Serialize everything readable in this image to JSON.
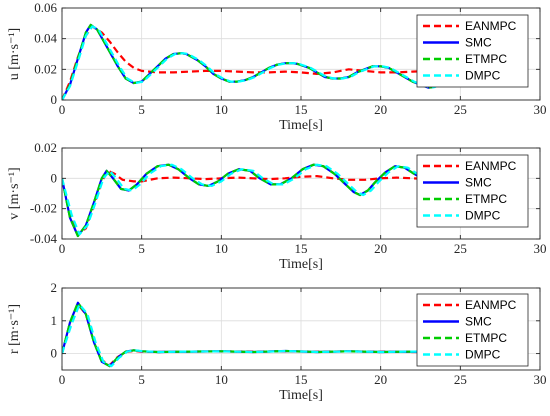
{
  "colors": {
    "EANMPC": "#ff0000",
    "SMC": "#0000ff",
    "ETMPC": "#00cc00",
    "DMPC": "#00ffff",
    "grid": "#dcdcdc",
    "axis": "#262626"
  },
  "chart_data": [
    {
      "type": "line",
      "ylabel": "u [m·s⁻¹]",
      "xlabel": "Time[s]",
      "xlim": [
        0,
        30
      ],
      "ylim": [
        0,
        0.06
      ],
      "xticks": [
        0,
        5,
        10,
        15,
        20,
        25,
        30
      ],
      "yticks": [
        0,
        0.02,
        0.04,
        0.06
      ],
      "ytick_labels": [
        "0",
        "0.02",
        "0.04",
        "0.06"
      ],
      "grid": true,
      "legend": "top-right",
      "series": [
        {
          "name": "EANMPC",
          "style": "dashed",
          "color": "#ff0000",
          "x": [
            0,
            0.5,
            1,
            1.5,
            1.9,
            2.5,
            3,
            3.5,
            4,
            4.5,
            5,
            6,
            7,
            8,
            9,
            10,
            11,
            12,
            13,
            14,
            15,
            16,
            17,
            18,
            19,
            20,
            21,
            22,
            23,
            24
          ],
          "y": [
            0,
            0.012,
            0.028,
            0.042,
            0.048,
            0.044,
            0.038,
            0.031,
            0.025,
            0.021,
            0.019,
            0.018,
            0.018,
            0.0185,
            0.019,
            0.019,
            0.0185,
            0.018,
            0.018,
            0.0185,
            0.018,
            0.017,
            0.018,
            0.02,
            0.019,
            0.018,
            0.018,
            0.0185,
            0.019,
            0.018
          ]
        },
        {
          "name": "SMC",
          "style": "solid",
          "color": "#0000ff",
          "x": [
            0,
            0.5,
            1,
            1.5,
            1.8,
            2.2,
            2.8,
            3.5,
            4,
            4.5,
            5,
            5.5,
            6,
            6.5,
            7,
            7.5,
            7.8,
            8.5,
            9,
            9.5,
            10,
            10.5,
            11,
            11.5,
            12,
            12.5,
            13,
            13.5,
            14,
            14.5,
            14.8,
            15.5,
            16,
            16.5,
            17,
            17.5,
            18,
            18.5,
            19,
            19.5,
            20,
            20.5,
            21,
            21.5,
            22,
            22.5,
            23,
            23.3,
            24
          ],
          "y": [
            0,
            0.01,
            0.027,
            0.044,
            0.049,
            0.046,
            0.035,
            0.022,
            0.014,
            0.011,
            0.012,
            0.017,
            0.022,
            0.027,
            0.03,
            0.0305,
            0.03,
            0.026,
            0.022,
            0.017,
            0.014,
            0.012,
            0.012,
            0.013,
            0.015,
            0.018,
            0.021,
            0.023,
            0.024,
            0.024,
            0.0235,
            0.021,
            0.018,
            0.015,
            0.014,
            0.014,
            0.015,
            0.018,
            0.02,
            0.022,
            0.022,
            0.021,
            0.018,
            0.015,
            0.012,
            0.01,
            0.008,
            0.0085,
            0.014
          ]
        },
        {
          "name": "ETMPC",
          "style": "dashed",
          "color": "#00cc00",
          "x": [
            0,
            0.5,
            1,
            1.5,
            1.8,
            2.2,
            2.8,
            3.5,
            4,
            4.5,
            5,
            5.5,
            6,
            6.5,
            7,
            7.5,
            7.8,
            8.5,
            9,
            9.5,
            10,
            10.5,
            11,
            11.5,
            12,
            12.5,
            13,
            13.5,
            14,
            14.5,
            14.8,
            15.5,
            16,
            16.5,
            17,
            17.5,
            18,
            18.5,
            19,
            19.5,
            20,
            20.5,
            21,
            21.5,
            22,
            22.5,
            23,
            23.3,
            24
          ],
          "y": [
            0,
            0.01,
            0.027,
            0.044,
            0.049,
            0.046,
            0.035,
            0.022,
            0.014,
            0.011,
            0.012,
            0.017,
            0.022,
            0.027,
            0.03,
            0.0305,
            0.03,
            0.026,
            0.022,
            0.017,
            0.014,
            0.012,
            0.012,
            0.013,
            0.015,
            0.018,
            0.021,
            0.023,
            0.024,
            0.024,
            0.0235,
            0.021,
            0.018,
            0.015,
            0.014,
            0.014,
            0.015,
            0.018,
            0.02,
            0.022,
            0.022,
            0.021,
            0.018,
            0.015,
            0.012,
            0.01,
            0.008,
            0.0085,
            0.014
          ]
        },
        {
          "name": "DMPC",
          "style": "dashed",
          "color": "#00ffff",
          "x": [
            0,
            0.5,
            1,
            1.5,
            1.9,
            2.3,
            2.9,
            3.6,
            4.1,
            4.6,
            5.1,
            5.6,
            6.1,
            6.6,
            7.1,
            7.6,
            7.9,
            8.6,
            9.1,
            9.6,
            10.1,
            10.6,
            11.1,
            11.6,
            12.1,
            12.6,
            13.1,
            13.6,
            14.1,
            14.6,
            14.9,
            15.6,
            16.1,
            16.6,
            17.1,
            17.6,
            18.1,
            18.6,
            19.1,
            19.6,
            20.1,
            20.6,
            21.1,
            21.6,
            22.1,
            22.6,
            23.1,
            23.4,
            24
          ],
          "y": [
            0,
            0.009,
            0.025,
            0.042,
            0.048,
            0.046,
            0.035,
            0.022,
            0.014,
            0.011,
            0.012,
            0.017,
            0.022,
            0.027,
            0.03,
            0.0305,
            0.03,
            0.026,
            0.022,
            0.017,
            0.014,
            0.012,
            0.012,
            0.013,
            0.015,
            0.018,
            0.021,
            0.023,
            0.024,
            0.024,
            0.0235,
            0.021,
            0.018,
            0.015,
            0.014,
            0.014,
            0.015,
            0.018,
            0.02,
            0.022,
            0.022,
            0.021,
            0.018,
            0.015,
            0.012,
            0.01,
            0.008,
            0.0085,
            0.012
          ]
        }
      ]
    },
    {
      "type": "line",
      "ylabel": "v [m·s⁻¹]",
      "xlabel": "Time[s]",
      "xlim": [
        0,
        30
      ],
      "ylim": [
        -0.04,
        0.02
      ],
      "xticks": [
        0,
        5,
        10,
        15,
        20,
        25,
        30
      ],
      "yticks": [
        -0.04,
        -0.02,
        0,
        0.02
      ],
      "ytick_labels": [
        "-0.04",
        "-0.02",
        "0",
        "0.02"
      ],
      "grid": true,
      "legend": "top-right",
      "series": [
        {
          "name": "EANMPC",
          "style": "dashed",
          "color": "#ff0000",
          "x": [
            0,
            0.5,
            1,
            1.5,
            2,
            2.5,
            2.9,
            3.3,
            3.8,
            4.5,
            5,
            6,
            7,
            8,
            9,
            10,
            11,
            12,
            13,
            14,
            15,
            16,
            17,
            18,
            19,
            20,
            21,
            22,
            23,
            24
          ],
          "y": [
            0,
            -0.024,
            -0.037,
            -0.033,
            -0.018,
            -0.002,
            0.005,
            0.003,
            -0.001,
            -0.002,
            -0.002,
            0.0,
            0.0005,
            0.0,
            -0.0005,
            0.0,
            0.0005,
            0.0,
            -0.0005,
            0.0,
            0.001,
            0.0015,
            0.0,
            -0.001,
            -0.001,
            0.0,
            0.0005,
            0.0,
            -0.0005,
            0.0
          ]
        },
        {
          "name": "SMC",
          "style": "solid",
          "color": "#0000ff",
          "x": [
            0,
            0.5,
            1,
            1.5,
            2,
            2.5,
            2.8,
            3.2,
            3.7,
            4.2,
            4.7,
            5.3,
            6,
            6.7,
            7.3,
            8,
            8.6,
            9.2,
            9.8,
            10.4,
            11.1,
            11.8,
            12.4,
            13.1,
            13.7,
            14.4,
            15.1,
            15.8,
            16.4,
            17.1,
            17.7,
            18.3,
            18.7,
            19.2,
            19.7,
            20.3,
            20.9,
            21.5,
            22.1,
            22.6
          ],
          "y": [
            0,
            -0.026,
            -0.038,
            -0.031,
            -0.016,
            0.0,
            0.005,
            0.0,
            -0.007,
            -0.008,
            -0.004,
            0.003,
            0.008,
            0.009,
            0.006,
            0.0,
            -0.004,
            -0.005,
            -0.002,
            0.003,
            0.006,
            0.005,
            0.0,
            -0.004,
            -0.004,
            0.0,
            0.006,
            0.009,
            0.008,
            0.003,
            -0.003,
            -0.009,
            -0.011,
            -0.008,
            -0.002,
            0.004,
            0.008,
            0.007,
            0.003,
            0.0
          ]
        },
        {
          "name": "ETMPC",
          "style": "dashed",
          "color": "#00cc00",
          "x": [
            0,
            0.5,
            1,
            1.5,
            2,
            2.5,
            2.8,
            3.2,
            3.7,
            4.2,
            4.7,
            5.3,
            6,
            6.7,
            7.3,
            8,
            8.6,
            9.2,
            9.8,
            10.4,
            11.1,
            11.8,
            12.4,
            13.1,
            13.7,
            14.4,
            15.1,
            15.8,
            16.4,
            17.1,
            17.7,
            18.3,
            18.7,
            19.2,
            19.7,
            20.3,
            20.9,
            21.5,
            22.1,
            22.6
          ],
          "y": [
            0,
            -0.026,
            -0.038,
            -0.031,
            -0.016,
            0.0,
            0.005,
            0.0,
            -0.007,
            -0.008,
            -0.004,
            0.003,
            0.008,
            0.009,
            0.006,
            0.0,
            -0.004,
            -0.005,
            -0.002,
            0.003,
            0.006,
            0.005,
            0.0,
            -0.004,
            -0.004,
            0.0,
            0.006,
            0.009,
            0.008,
            0.003,
            -0.003,
            -0.009,
            -0.011,
            -0.008,
            -0.002,
            0.004,
            0.008,
            0.007,
            0.003,
            0.0
          ]
        },
        {
          "name": "DMPC",
          "style": "dashed",
          "color": "#00ffff",
          "x": [
            0,
            0.6,
            1.1,
            1.6,
            2.1,
            2.6,
            3.0,
            3.4,
            3.9,
            4.4,
            4.9,
            5.5,
            6.2,
            6.9,
            7.5,
            8.2,
            8.8,
            9.4,
            10.0,
            10.6,
            11.3,
            12.0,
            12.6,
            13.3,
            13.9,
            14.6,
            15.3,
            16.0,
            16.6,
            17.3,
            17.9,
            18.5,
            18.9,
            19.4,
            19.9,
            20.5,
            21.1,
            21.7,
            22.3,
            22.8
          ],
          "y": [
            0,
            -0.024,
            -0.037,
            -0.031,
            -0.016,
            0.0,
            0.005,
            0.0,
            -0.007,
            -0.008,
            -0.004,
            0.003,
            0.008,
            0.009,
            0.006,
            0.0,
            -0.004,
            -0.005,
            -0.002,
            0.003,
            0.006,
            0.005,
            0.0,
            -0.004,
            -0.004,
            0.0,
            0.006,
            0.009,
            0.008,
            0.003,
            -0.003,
            -0.009,
            -0.011,
            -0.008,
            -0.002,
            0.004,
            0.008,
            0.007,
            0.003,
            0.0
          ]
        }
      ]
    },
    {
      "type": "line",
      "ylabel": "r [m·s⁻¹]",
      "xlabel": "Time[s]",
      "xlim": [
        0,
        30
      ],
      "ylim": [
        -0.5,
        2
      ],
      "xticks": [
        0,
        5,
        10,
        15,
        20,
        25,
        30
      ],
      "yticks": [
        0,
        1,
        2
      ],
      "ytick_labels": [
        "0",
        "1",
        "2"
      ],
      "grid": true,
      "legend": "top-right",
      "series": [
        {
          "name": "EANMPC",
          "style": "dashed",
          "color": "#ff0000",
          "x": [
            0,
            0.5,
            1,
            1.5,
            2,
            2.5,
            3,
            3.5,
            4,
            4.5,
            5,
            6,
            8,
            10,
            12,
            14,
            16,
            18,
            20,
            22,
            24,
            26,
            27.3
          ],
          "y": [
            0,
            0.9,
            1.5,
            1.2,
            0.4,
            -0.2,
            -0.35,
            -0.1,
            0.05,
            0.08,
            0.06,
            0.05,
            0.06,
            0.07,
            0.06,
            0.07,
            0.06,
            0.07,
            0.06,
            0.05,
            0.04,
            0.05,
            0.0
          ]
        },
        {
          "name": "SMC",
          "style": "solid",
          "color": "#0000ff",
          "x": [
            0,
            0.5,
            1,
            1.5,
            2,
            2.5,
            3,
            3.5,
            4,
            4.5,
            5,
            6,
            8,
            10,
            12,
            14,
            16,
            18,
            20,
            22,
            24,
            26,
            27.3
          ],
          "y": [
            0,
            0.95,
            1.55,
            1.2,
            0.35,
            -0.25,
            -0.38,
            -0.12,
            0.06,
            0.1,
            0.07,
            0.05,
            0.06,
            0.07,
            0.05,
            0.08,
            0.05,
            0.07,
            0.05,
            0.06,
            0.04,
            0.05,
            0.0
          ]
        },
        {
          "name": "ETMPC",
          "style": "dashed",
          "color": "#00cc00",
          "x": [
            0,
            0.5,
            1,
            1.5,
            2,
            2.5,
            3,
            3.5,
            4,
            4.5,
            5,
            6,
            8,
            10,
            12,
            14,
            16,
            18,
            20,
            22,
            24,
            26,
            27.3
          ],
          "y": [
            0,
            0.95,
            1.55,
            1.2,
            0.35,
            -0.25,
            -0.38,
            -0.12,
            0.06,
            0.1,
            0.07,
            0.05,
            0.06,
            0.07,
            0.05,
            0.08,
            0.05,
            0.07,
            0.05,
            0.06,
            0.04,
            0.05,
            0.0
          ]
        },
        {
          "name": "DMPC",
          "style": "dashed",
          "color": "#00ffff",
          "x": [
            0,
            0.6,
            1.1,
            1.6,
            2.1,
            2.6,
            3.1,
            3.6,
            4.1,
            4.6,
            5.1,
            6.1,
            8.1,
            10.1,
            12.1,
            14.1,
            16.1,
            18.1,
            20.1,
            22.1,
            24.1,
            26.1,
            27.4
          ],
          "y": [
            0,
            0.9,
            1.5,
            1.2,
            0.35,
            -0.25,
            -0.38,
            -0.12,
            0.06,
            0.1,
            0.07,
            0.05,
            0.06,
            0.07,
            0.05,
            0.08,
            0.05,
            0.07,
            0.05,
            0.06,
            0.04,
            0.05,
            0.0
          ]
        }
      ]
    }
  ]
}
